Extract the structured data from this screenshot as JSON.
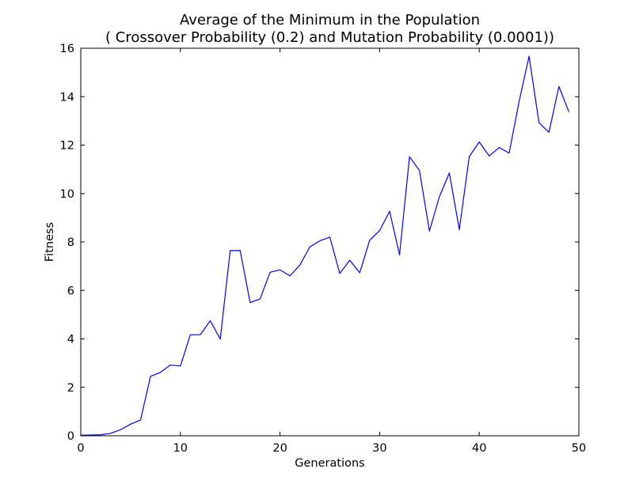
{
  "chart_data": {
    "type": "line",
    "title": "Average of the Minimum in the Population",
    "subtitle": "( Crossover Probability (0.2) and Mutation Probability (0.0001))",
    "xlabel": "Generations",
    "ylabel": "Fitness",
    "xlim": [
      0,
      50
    ],
    "ylim": [
      0,
      16
    ],
    "xticks": [
      0,
      10,
      20,
      30,
      40,
      50
    ],
    "yticks": [
      0,
      2,
      4,
      6,
      8,
      10,
      12,
      14,
      16
    ],
    "grid": false,
    "line_color": "#0000ff",
    "series": [
      {
        "x": [
          0,
          1,
          2,
          3,
          4,
          5,
          6,
          7,
          8,
          9,
          10,
          11,
          12,
          13,
          14,
          15,
          16,
          17,
          18,
          19,
          20,
          21,
          22,
          23,
          24,
          25,
          26,
          27,
          28,
          29,
          30,
          31,
          32,
          33,
          34,
          35,
          36,
          37,
          38,
          39,
          40,
          41,
          42,
          43,
          44,
          45,
          46,
          47,
          48,
          49
        ],
        "y": [
          0.02,
          0.03,
          0.04,
          0.1,
          0.25,
          0.48,
          0.65,
          2.45,
          2.62,
          2.92,
          2.88,
          4.17,
          4.17,
          4.75,
          3.99,
          7.64,
          7.65,
          5.5,
          5.65,
          6.75,
          6.85,
          6.6,
          7.05,
          7.8,
          8.05,
          8.2,
          6.7,
          7.25,
          6.73,
          8.07,
          8.47,
          9.27,
          7.47,
          11.52,
          10.95,
          8.45,
          9.87,
          10.85,
          8.51,
          11.53,
          12.13,
          11.55,
          11.9,
          11.67,
          13.8,
          15.67,
          12.93,
          12.53,
          14.42,
          13.37
        ]
      }
    ]
  }
}
